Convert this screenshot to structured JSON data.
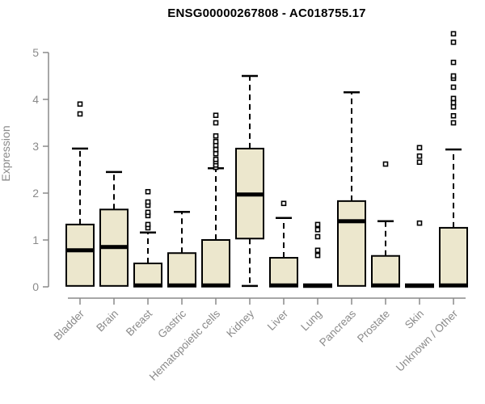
{
  "chart_data": {
    "type": "boxplot",
    "title": "ENSG00000267808 - AC018755.17",
    "xlabel": "",
    "ylabel": "Expression",
    "ylim": [
      0,
      5.5
    ],
    "yticks": [
      0,
      1,
      2,
      3,
      4,
      5
    ],
    "grid": false,
    "legend": "none",
    "categories": [
      "Bladder",
      "Brain",
      "Breast",
      "Gastric",
      "Hematopoietic cells",
      "Kidney",
      "Liver",
      "Lung",
      "Pancreas",
      "Prostate",
      "Skin",
      "Unknown / Other"
    ],
    "series": [
      {
        "category": "Bladder",
        "whisker_low": 0.02,
        "q1": 0.02,
        "median": 0.78,
        "q3": 1.33,
        "whisker_high": 2.95,
        "outliers": [
          3.69,
          3.9
        ]
      },
      {
        "category": "Brain",
        "whisker_low": 0.02,
        "q1": 0.02,
        "median": 0.85,
        "q3": 1.65,
        "whisker_high": 2.45,
        "outliers": []
      },
      {
        "category": "Breast",
        "whisker_low": 0.02,
        "q1": 0.02,
        "median": 0.03,
        "q3": 0.5,
        "whisker_high": 1.16,
        "outliers": [
          1.26,
          1.33,
          1.52,
          1.59,
          1.74,
          1.81,
          2.03
        ]
      },
      {
        "category": "Gastric",
        "whisker_low": 0.02,
        "q1": 0.02,
        "median": 0.03,
        "q3": 0.72,
        "whisker_high": 1.6,
        "outliers": []
      },
      {
        "category": "Hematopoietic cells",
        "whisker_low": 0.02,
        "q1": 0.02,
        "median": 0.03,
        "q3": 1.0,
        "whisker_high": 2.53,
        "outliers": [
          2.55,
          2.6,
          2.67,
          2.72,
          2.84,
          2.93,
          3.02,
          3.1,
          3.22,
          3.5,
          3.66
        ]
      },
      {
        "category": "Kidney",
        "whisker_low": 0.02,
        "q1": 1.03,
        "median": 1.97,
        "q3": 2.95,
        "whisker_high": 4.5,
        "outliers": []
      },
      {
        "category": "Liver",
        "whisker_low": 0.02,
        "q1": 0.02,
        "median": 0.03,
        "q3": 0.62,
        "whisker_high": 1.47,
        "outliers": [
          1.78
        ]
      },
      {
        "category": "Lung",
        "whisker_low": 0.03,
        "q1": 0.03,
        "median": 0.03,
        "q3": 0.03,
        "whisker_high": 0.03,
        "outliers": [
          0.67,
          0.78,
          1.07,
          1.22,
          1.33
        ]
      },
      {
        "category": "Pancreas",
        "whisker_low": 0.02,
        "q1": 0.02,
        "median": 1.4,
        "q3": 1.83,
        "whisker_high": 4.15,
        "outliers": []
      },
      {
        "category": "Prostate",
        "whisker_low": 0.02,
        "q1": 0.02,
        "median": 0.03,
        "q3": 0.66,
        "whisker_high": 1.4,
        "outliers": [
          2.62
        ]
      },
      {
        "category": "Skin",
        "whisker_low": 0.03,
        "q1": 0.03,
        "median": 0.03,
        "q3": 0.03,
        "whisker_high": 0.03,
        "outliers": [
          1.36,
          2.66,
          2.79,
          2.97
        ]
      },
      {
        "category": "Unknown / Other",
        "whisker_low": 0.02,
        "q1": 0.02,
        "median": 0.03,
        "q3": 1.26,
        "whisker_high": 2.93,
        "outliers": [
          3.5,
          3.65,
          3.84,
          3.93,
          4.02,
          4.26,
          4.45,
          4.5,
          4.79,
          5.22,
          5.4
        ]
      }
    ],
    "colors": {
      "box_fill": "#ECE7CD",
      "box_border": "#000000",
      "median": "#000000",
      "whisker": "#000000",
      "outlier_fill": "#ffffff",
      "outlier_border": "#000000",
      "axis": "#8a8a8a",
      "tick_label": "#8a8a8a",
      "category_label": "#8a8a8a",
      "title": "#000000",
      "background": "#ffffff"
    }
  }
}
